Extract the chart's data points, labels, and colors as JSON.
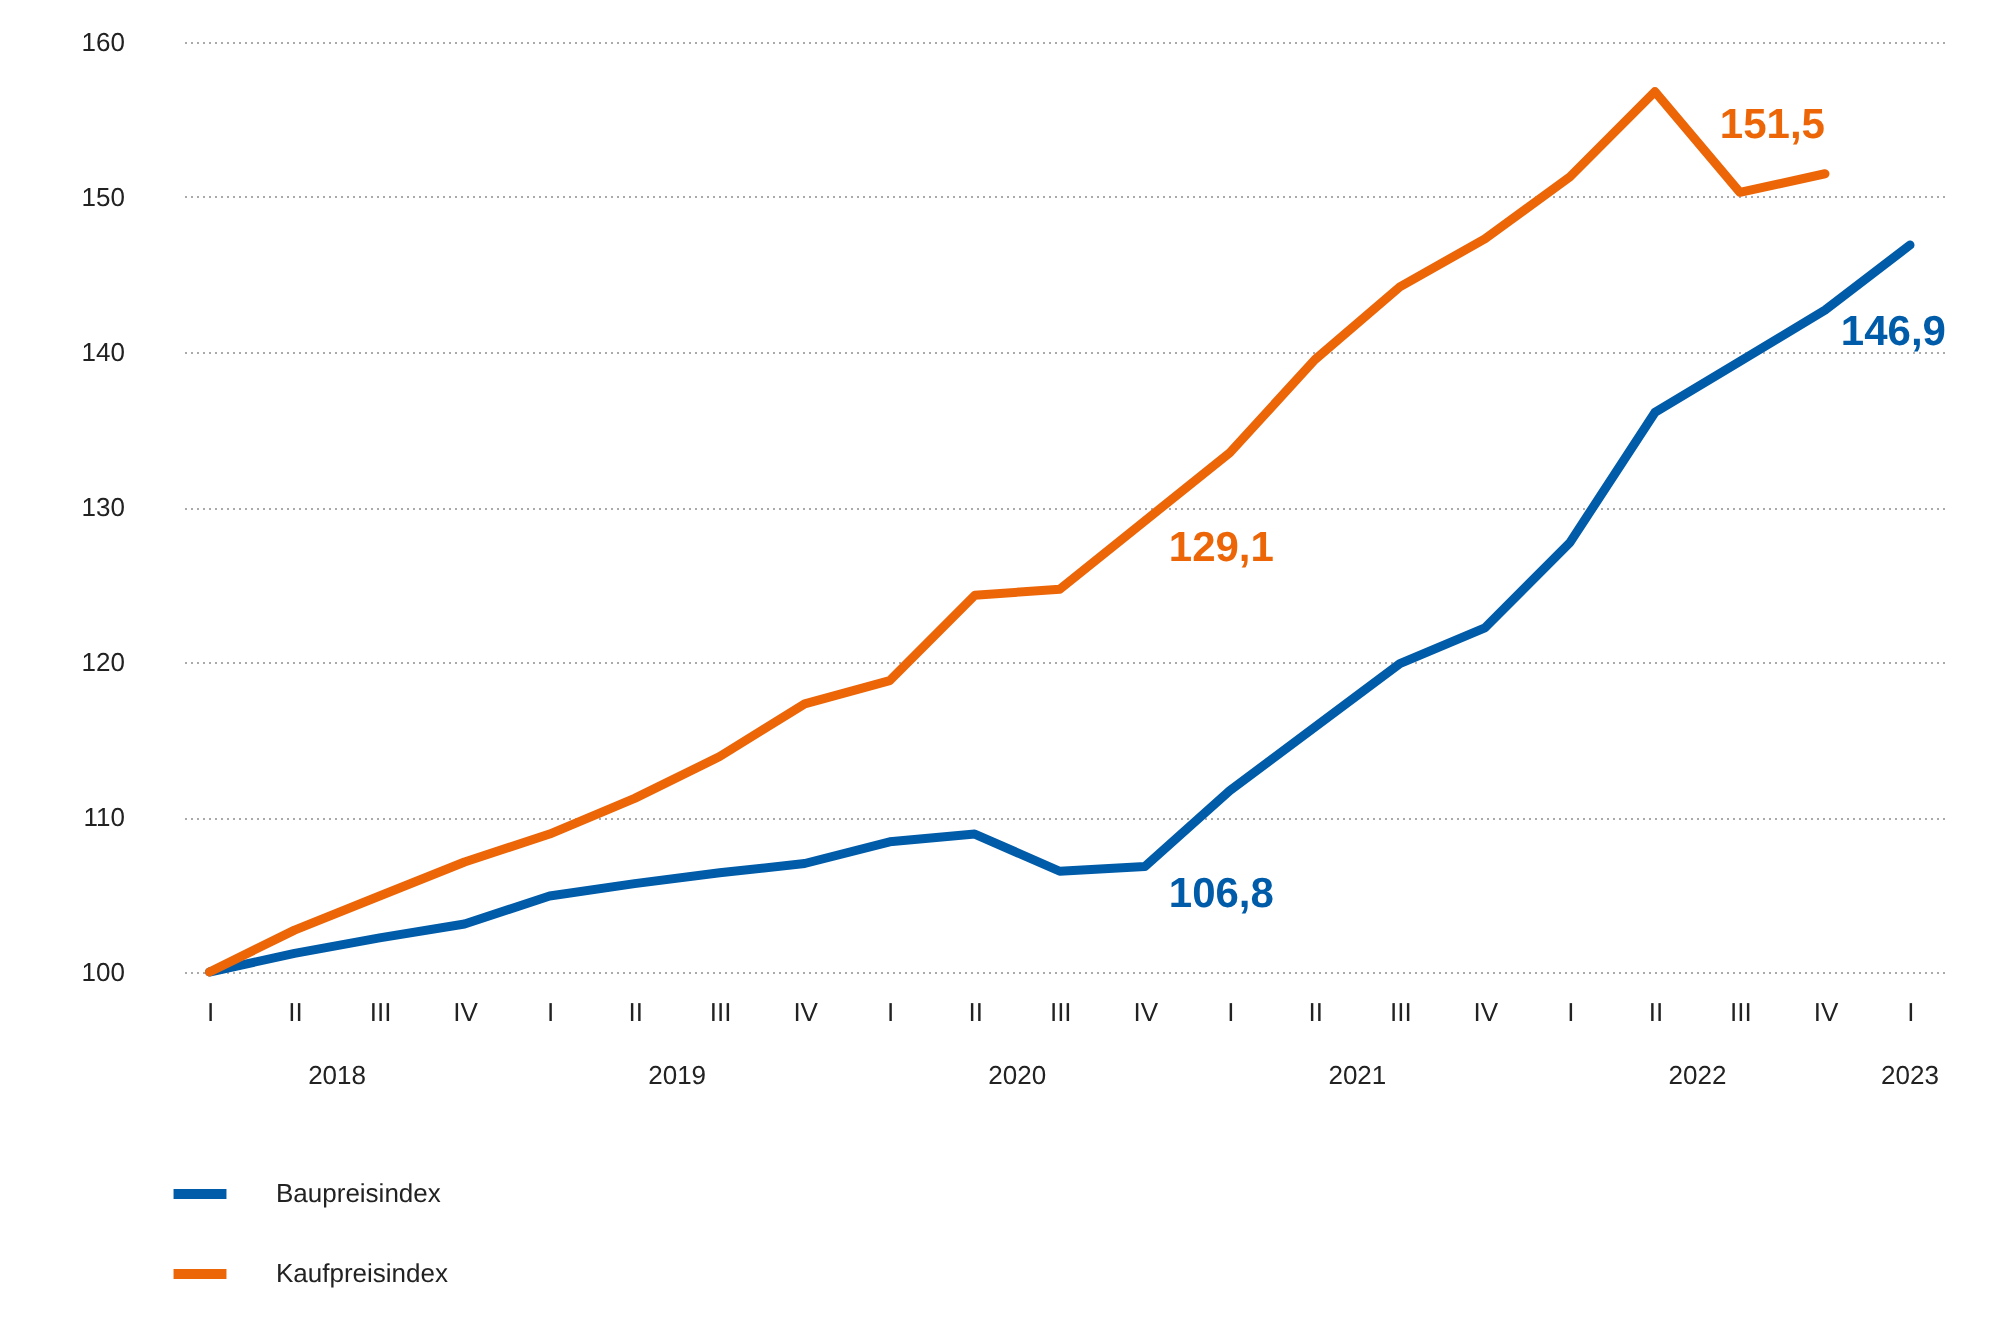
{
  "chart_data": {
    "type": "line",
    "categories": [
      "I",
      "II",
      "III",
      "IV",
      "I",
      "II",
      "III",
      "IV",
      "I",
      "II",
      "III",
      "IV",
      "I",
      "II",
      "III",
      "IV",
      "I",
      "II",
      "III",
      "IV",
      "I"
    ],
    "series": [
      {
        "name": "Baupreisindex",
        "color": "#005ca9",
        "values": [
          100,
          101.2,
          102.2,
          103.1,
          104.9,
          105.7,
          106.4,
          107.0,
          108.4,
          108.9,
          106.5,
          106.8,
          111.7,
          115.8,
          119.9,
          122.2,
          127.7,
          136.1,
          139.4,
          142.7,
          146.9
        ],
        "value_labels": [
          null,
          null,
          null,
          null,
          null,
          null,
          null,
          null,
          null,
          null,
          null,
          "106,8",
          null,
          null,
          null,
          null,
          null,
          null,
          null,
          null,
          "146,9"
        ]
      },
      {
        "name": "Kaufpreisindex",
        "color": "#ec6608",
        "values": [
          100,
          102.7,
          104.9,
          107.1,
          108.9,
          111.2,
          113.9,
          117.3,
          118.8,
          124.3,
          124.7,
          129.1,
          133.5,
          139.5,
          144.2,
          147.3,
          151.3,
          156.8,
          150.3,
          151.5,
          null
        ],
        "value_labels": [
          null,
          null,
          null,
          null,
          null,
          null,
          null,
          null,
          null,
          null,
          null,
          "129,1",
          null,
          null,
          null,
          null,
          null,
          null,
          null,
          "151,5",
          null
        ]
      }
    ],
    "ylim": [
      100,
      160
    ],
    "yticks": [
      100,
      110,
      120,
      130,
      140,
      150,
      160
    ],
    "grid": "y",
    "legend": "bottom left",
    "line_style": "solid",
    "marker": "none",
    "annotations": [
      "2018",
      "2019",
      "2020",
      "2021",
      "2022",
      "2023"
    ]
  }
}
